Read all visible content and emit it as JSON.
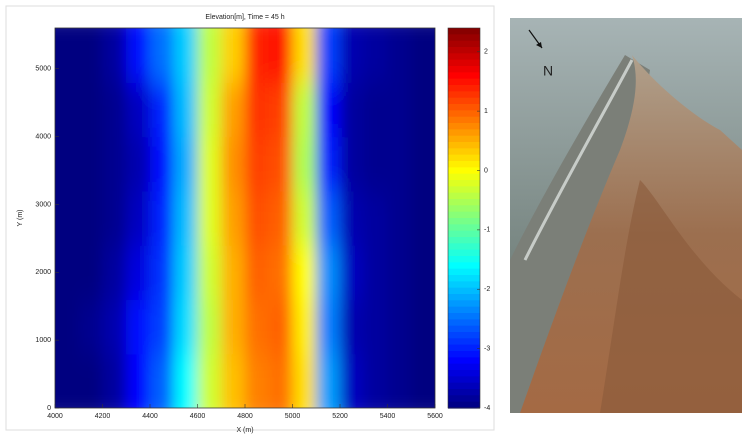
{
  "chart_data": {
    "type": "heatmap",
    "title": "Elevation[m], Time = 45 h",
    "xlabel": "X (m)",
    "ylabel": "Y (m)",
    "xbins": [
      4000,
      4100,
      4200,
      4300,
      4400,
      4500,
      4600,
      4700,
      4800,
      4900,
      5000,
      5100,
      5200,
      5300,
      5400,
      5500,
      5600
    ],
    "ybins": [
      0,
      800,
      1600,
      2400,
      3200,
      4000,
      4800,
      5600
    ],
    "z": [
      [
        -4,
        -4,
        -3.8,
        -3.2,
        -2.6,
        -1.6,
        -0.3,
        0.4,
        0.8,
        0.9,
        0.2,
        -2.2,
        -3.6,
        -3.8,
        -3.9,
        -4
      ],
      [
        -4,
        -3.9,
        -3.7,
        -3.1,
        -2.8,
        -1.8,
        -0.4,
        0.5,
        0.9,
        1.0,
        0.1,
        -2.4,
        -3.7,
        -3.8,
        -3.9,
        -4
      ],
      [
        -4,
        -4,
        -3.8,
        -3.4,
        -2.9,
        -1.9,
        -0.3,
        0.5,
        1.0,
        0.9,
        0.0,
        -2.3,
        -3.6,
        -3.8,
        -3.9,
        -4
      ],
      [
        -4,
        -4,
        -3.9,
        -3.6,
        -3.0,
        -2.0,
        -0.2,
        0.6,
        1.1,
        1.0,
        -0.3,
        -2.6,
        -3.7,
        -3.8,
        -3.9,
        -4
      ],
      [
        -4,
        -4,
        -3.9,
        -3.7,
        -3.1,
        -2.1,
        -0.2,
        0.7,
        1.2,
        1.1,
        -0.5,
        -3.0,
        -3.8,
        -3.9,
        -3.9,
        -4
      ],
      [
        -4,
        -4,
        -3.9,
        -3.6,
        -3.0,
        -2.0,
        -0.3,
        0.6,
        1.3,
        1.2,
        -0.4,
        -3.2,
        -3.8,
        -3.9,
        -3.9,
        -4
      ],
      [
        -4,
        -4,
        -3.8,
        -3.1,
        -2.5,
        -1.9,
        -0.4,
        0.3,
        1.4,
        1.5,
        0.2,
        -2.8,
        -3.7,
        -3.8,
        -3.9,
        -4
      ]
    ],
    "xlim": [
      4000,
      5600
    ],
    "xticks": [
      4000,
      4200,
      4400,
      4600,
      4800,
      5000,
      5200,
      5400,
      5600
    ],
    "ylim": [
      0,
      5600
    ],
    "yticks": [
      0,
      1000,
      2000,
      3000,
      4000,
      5000
    ],
    "colormap": "jet",
    "zlim": [
      -4,
      2.4
    ],
    "zticks": [
      -4,
      -3,
      -2,
      -1,
      0,
      1,
      2
    ]
  },
  "photo": {
    "label": "N"
  }
}
